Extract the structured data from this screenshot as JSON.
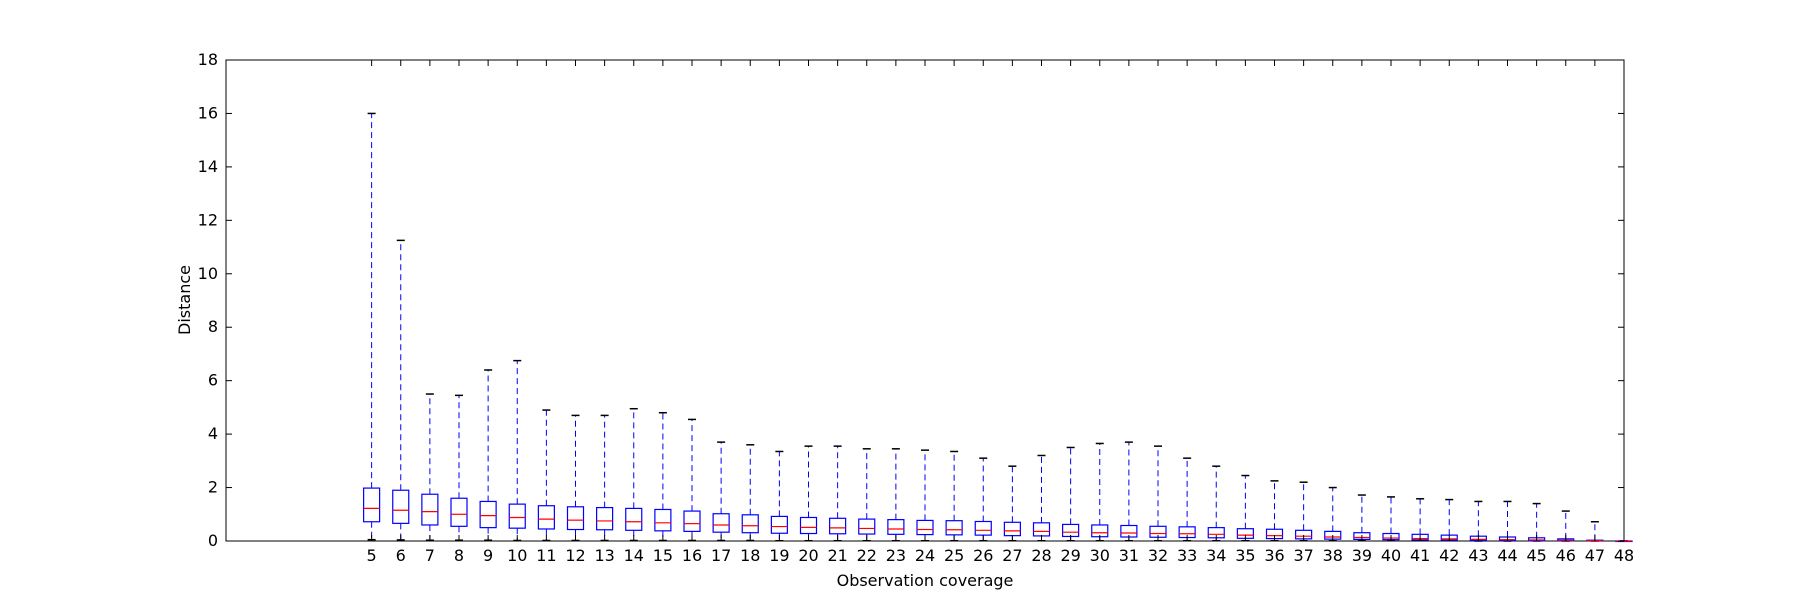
{
  "chart_data": {
    "type": "box",
    "xlabel": "Observation coverage",
    "ylabel": "Distance",
    "ylim": [
      0,
      18
    ],
    "xlim": [
      0,
      48
    ],
    "yticks": [
      0,
      2,
      4,
      6,
      8,
      10,
      12,
      14,
      16,
      18
    ],
    "categories": [
      5,
      6,
      7,
      8,
      9,
      10,
      11,
      12,
      13,
      14,
      15,
      16,
      17,
      18,
      19,
      20,
      21,
      22,
      23,
      24,
      25,
      26,
      27,
      28,
      29,
      30,
      31,
      32,
      33,
      34,
      35,
      36,
      37,
      38,
      39,
      40,
      41,
      42,
      43,
      44,
      45,
      46,
      47,
      48
    ],
    "boxes": [
      {
        "x": 5,
        "min": 0.05,
        "q1": 0.72,
        "median": 1.22,
        "q3": 1.98,
        "max": 16.0
      },
      {
        "x": 6,
        "min": 0.04,
        "q1": 0.66,
        "median": 1.15,
        "q3": 1.9,
        "max": 11.25
      },
      {
        "x": 7,
        "min": 0.03,
        "q1": 0.6,
        "median": 1.1,
        "q3": 1.75,
        "max": 5.5
      },
      {
        "x": 8,
        "min": 0.03,
        "q1": 0.55,
        "median": 1.0,
        "q3": 1.6,
        "max": 5.45
      },
      {
        "x": 9,
        "min": 0.03,
        "q1": 0.5,
        "median": 0.95,
        "q3": 1.48,
        "max": 6.4
      },
      {
        "x": 10,
        "min": 0.02,
        "q1": 0.48,
        "median": 0.88,
        "q3": 1.38,
        "max": 6.75
      },
      {
        "x": 11,
        "min": 0.02,
        "q1": 0.45,
        "median": 0.82,
        "q3": 1.32,
        "max": 4.9
      },
      {
        "x": 12,
        "min": 0.02,
        "q1": 0.43,
        "median": 0.78,
        "q3": 1.28,
        "max": 4.7
      },
      {
        "x": 13,
        "min": 0.02,
        "q1": 0.42,
        "median": 0.75,
        "q3": 1.25,
        "max": 4.7
      },
      {
        "x": 14,
        "min": 0.02,
        "q1": 0.4,
        "median": 0.72,
        "q3": 1.22,
        "max": 4.95
      },
      {
        "x": 15,
        "min": 0.02,
        "q1": 0.38,
        "median": 0.68,
        "q3": 1.18,
        "max": 4.8
      },
      {
        "x": 16,
        "min": 0.02,
        "q1": 0.36,
        "median": 0.65,
        "q3": 1.12,
        "max": 4.55
      },
      {
        "x": 17,
        "min": 0.02,
        "q1": 0.33,
        "median": 0.6,
        "q3": 1.02,
        "max": 3.7
      },
      {
        "x": 18,
        "min": 0.02,
        "q1": 0.31,
        "median": 0.57,
        "q3": 0.98,
        "max": 3.6
      },
      {
        "x": 19,
        "min": 0.01,
        "q1": 0.29,
        "median": 0.54,
        "q3": 0.92,
        "max": 3.35
      },
      {
        "x": 20,
        "min": 0.01,
        "q1": 0.28,
        "median": 0.51,
        "q3": 0.88,
        "max": 3.55
      },
      {
        "x": 21,
        "min": 0.01,
        "q1": 0.27,
        "median": 0.49,
        "q3": 0.85,
        "max": 3.55
      },
      {
        "x": 22,
        "min": 0.01,
        "q1": 0.26,
        "median": 0.47,
        "q3": 0.82,
        "max": 3.45
      },
      {
        "x": 23,
        "min": 0.01,
        "q1": 0.25,
        "median": 0.45,
        "q3": 0.8,
        "max": 3.45
      },
      {
        "x": 24,
        "min": 0.01,
        "q1": 0.24,
        "median": 0.43,
        "q3": 0.77,
        "max": 3.4
      },
      {
        "x": 25,
        "min": 0.01,
        "q1": 0.23,
        "median": 0.42,
        "q3": 0.76,
        "max": 3.35
      },
      {
        "x": 26,
        "min": 0.01,
        "q1": 0.22,
        "median": 0.4,
        "q3": 0.73,
        "max": 3.1
      },
      {
        "x": 27,
        "min": 0.01,
        "q1": 0.2,
        "median": 0.38,
        "q3": 0.7,
        "max": 2.8
      },
      {
        "x": 28,
        "min": 0.01,
        "q1": 0.19,
        "median": 0.36,
        "q3": 0.68,
        "max": 3.2
      },
      {
        "x": 29,
        "min": 0.01,
        "q1": 0.17,
        "median": 0.33,
        "q3": 0.62,
        "max": 3.5
      },
      {
        "x": 30,
        "min": 0.01,
        "q1": 0.16,
        "median": 0.31,
        "q3": 0.6,
        "max": 3.65
      },
      {
        "x": 31,
        "min": 0.01,
        "q1": 0.15,
        "median": 0.3,
        "q3": 0.58,
        "max": 3.7
      },
      {
        "x": 32,
        "min": 0.01,
        "q1": 0.14,
        "median": 0.28,
        "q3": 0.55,
        "max": 3.55
      },
      {
        "x": 33,
        "min": 0.01,
        "q1": 0.13,
        "median": 0.27,
        "q3": 0.53,
        "max": 3.1
      },
      {
        "x": 34,
        "min": 0.01,
        "q1": 0.12,
        "median": 0.25,
        "q3": 0.5,
        "max": 2.8
      },
      {
        "x": 35,
        "min": 0.01,
        "q1": 0.1,
        "median": 0.22,
        "q3": 0.46,
        "max": 2.45
      },
      {
        "x": 36,
        "min": 0.01,
        "q1": 0.09,
        "median": 0.2,
        "q3": 0.44,
        "max": 2.25
      },
      {
        "x": 37,
        "min": 0.01,
        "q1": 0.08,
        "median": 0.18,
        "q3": 0.4,
        "max": 2.2
      },
      {
        "x": 38,
        "min": 0.01,
        "q1": 0.07,
        "median": 0.15,
        "q3": 0.36,
        "max": 2.0
      },
      {
        "x": 39,
        "min": 0.01,
        "q1": 0.06,
        "median": 0.13,
        "q3": 0.31,
        "max": 1.72
      },
      {
        "x": 40,
        "min": 0.01,
        "q1": 0.05,
        "median": 0.11,
        "q3": 0.28,
        "max": 1.65
      },
      {
        "x": 41,
        "min": 0.01,
        "q1": 0.04,
        "median": 0.09,
        "q3": 0.25,
        "max": 1.58
      },
      {
        "x": 42,
        "min": 0.01,
        "q1": 0.03,
        "median": 0.08,
        "q3": 0.22,
        "max": 1.55
      },
      {
        "x": 43,
        "min": 0.0,
        "q1": 0.02,
        "median": 0.06,
        "q3": 0.18,
        "max": 1.48
      },
      {
        "x": 44,
        "min": 0.0,
        "q1": 0.02,
        "median": 0.05,
        "q3": 0.15,
        "max": 1.48
      },
      {
        "x": 45,
        "min": 0.0,
        "q1": 0.01,
        "median": 0.04,
        "q3": 0.12,
        "max": 1.4
      },
      {
        "x": 46,
        "min": 0.0,
        "q1": 0.01,
        "median": 0.03,
        "q3": 0.08,
        "max": 1.12
      },
      {
        "x": 47,
        "min": 0.0,
        "q1": 0.0,
        "median": 0.01,
        "q3": 0.03,
        "max": 0.72
      },
      {
        "x": 48,
        "min": 0.0,
        "q1": 0.0,
        "median": 0.0,
        "q3": 0.0,
        "max": 0.0
      }
    ],
    "colors": {
      "box": "#0000ff",
      "median": "#ff0000",
      "whisker": "#0000ff",
      "cap": "#000000",
      "axes": "#000000"
    },
    "grid": false,
    "legend": "none"
  }
}
